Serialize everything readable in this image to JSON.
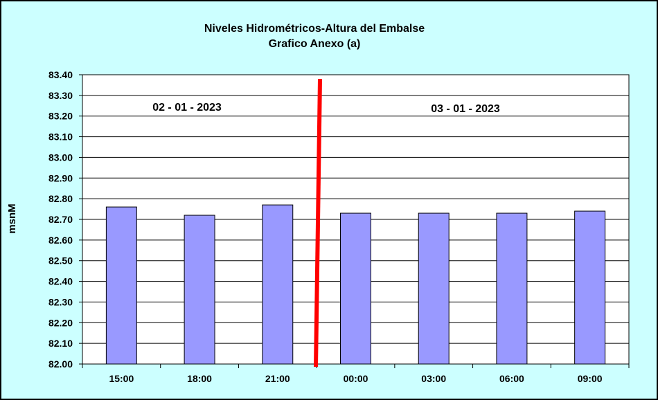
{
  "chart_data": {
    "type": "bar",
    "title": "Niveles Hidrométricos-Altura del Embalse",
    "subtitle": "Grafico Anexo (a)",
    "ylabel": "msnM",
    "xlabel": "",
    "categories": [
      "15:00",
      "18:00",
      "21:00",
      "00:00",
      "03:00",
      "06:00",
      "09:00"
    ],
    "values": [
      82.76,
      82.72,
      82.77,
      82.73,
      82.73,
      82.73,
      82.74
    ],
    "ylim": [
      82.0,
      83.4
    ],
    "yticks": [
      "82.00",
      "82.10",
      "82.20",
      "82.30",
      "82.40",
      "82.50",
      "82.60",
      "82.70",
      "82.80",
      "82.90",
      "83.00",
      "83.10",
      "83.20",
      "83.30",
      "83.40"
    ],
    "grid": true,
    "legend": "none",
    "annotations": {
      "day_labels": [
        "02 - 01 - 2023",
        "03 - 01 - 2023"
      ],
      "separator_between": [
        "21:00",
        "00:00"
      ]
    },
    "colors": {
      "background": "#ccffff",
      "plot_area": "#ffffff",
      "bar_fill": "#9999ff",
      "bar_stroke": "#000000",
      "separator": "#ff0000",
      "gridline": "#000000"
    }
  }
}
